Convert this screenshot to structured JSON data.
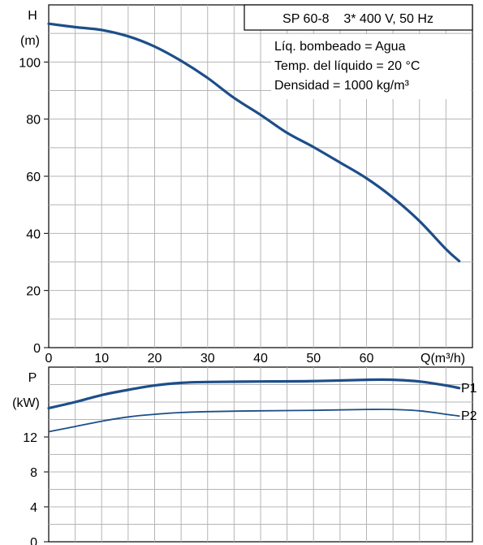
{
  "chart_data": [
    {
      "type": "line",
      "title": "SP 60-8    3* 400 V, 50 Hz",
      "annotations": [
        "Líq. bombeado = Agua",
        "Temp. del líquido = 20 °C",
        "Densidad = 1000 kg/m³"
      ],
      "ylabel": "H",
      "yunit": "(m)",
      "xlabel": "Q(m³/h)",
      "xlim": [
        0,
        80
      ],
      "ylim": [
        0,
        120
      ],
      "xticks": [
        0,
        10,
        20,
        30,
        40,
        50,
        60
      ],
      "yticks": [
        0,
        20,
        40,
        60,
        80,
        100
      ],
      "grid": true,
      "series": [
        {
          "color": "#1d4e89",
          "points": [
            [
              0,
              113.4
            ],
            [
              5,
              112.2
            ],
            [
              10,
              111.2
            ],
            [
              15,
              109.0
            ],
            [
              20,
              105.4
            ],
            [
              25,
              100.4
            ],
            [
              30,
              94.4
            ],
            [
              35,
              87.4
            ],
            [
              40,
              81.5
            ],
            [
              45,
              75.2
            ],
            [
              50,
              70.2
            ],
            [
              55,
              64.8
            ],
            [
              60,
              59.3
            ],
            [
              65,
              52.5
            ],
            [
              70,
              44.3
            ],
            [
              75,
              34.5
            ],
            [
              77.5,
              30.3
            ]
          ]
        }
      ]
    },
    {
      "type": "line",
      "ylabel": "P",
      "yunit": "(kW)",
      "xlim": [
        0,
        80
      ],
      "ylim": [
        0,
        20
      ],
      "yticks": [
        0,
        4,
        8,
        12
      ],
      "grid": true,
      "series": [
        {
          "name": "P1",
          "color": "#1d4e89",
          "width": 3.2,
          "points": [
            [
              0,
              15.3
            ],
            [
              5,
              16.0
            ],
            [
              10,
              16.8
            ],
            [
              15,
              17.4
            ],
            [
              20,
              17.9
            ],
            [
              25,
              18.2
            ],
            [
              30,
              18.3
            ],
            [
              40,
              18.35
            ],
            [
              50,
              18.4
            ],
            [
              60,
              18.55
            ],
            [
              65,
              18.55
            ],
            [
              70,
              18.35
            ],
            [
              75,
              17.9
            ],
            [
              77.5,
              17.6
            ]
          ]
        },
        {
          "name": "P2",
          "color": "#1d4e89",
          "width": 1.8,
          "points": [
            [
              0,
              12.6
            ],
            [
              5,
              13.2
            ],
            [
              10,
              13.8
            ],
            [
              15,
              14.3
            ],
            [
              20,
              14.6
            ],
            [
              25,
              14.8
            ],
            [
              30,
              14.9
            ],
            [
              40,
              15.0
            ],
            [
              50,
              15.05
            ],
            [
              60,
              15.15
            ],
            [
              65,
              15.15
            ],
            [
              70,
              15.0
            ],
            [
              75,
              14.6
            ],
            [
              77.5,
              14.4
            ]
          ]
        }
      ]
    }
  ]
}
